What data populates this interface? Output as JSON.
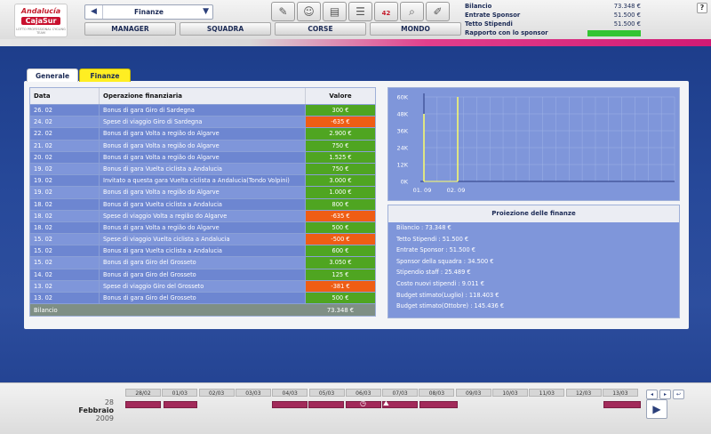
{
  "logo": {
    "top": "Andalucía",
    "brand": "CajaSur",
    "tagline": "LOTTO PROFESSIONAL CYCLING TEAM"
  },
  "header": {
    "selector_value": "Finanze",
    "nav": [
      "MANAGER",
      "SQUADRA",
      "CORSE",
      "MONDO"
    ],
    "icons": [
      "contract-icon",
      "manager-icon",
      "money-icon",
      "notebook-icon",
      "calendar-icon",
      "search-icon",
      "edit-icon"
    ],
    "calendar_badge": "42",
    "summary": [
      {
        "label": "Bilancio",
        "value": "73.348 €"
      },
      {
        "label": "Entrate Sponsor",
        "value": "51.500 €"
      },
      {
        "label": "Tetto Stipendi",
        "value": "51.500 €"
      },
      {
        "label": "Rapporto con lo sponsor",
        "value": ""
      }
    ],
    "sponsor_level": 1.0,
    "sponsor_color": "#33c533",
    "help": "?"
  },
  "tabs": [
    {
      "label": "Generale",
      "active": false
    },
    {
      "label": "Finanze",
      "active": true
    }
  ],
  "table": {
    "headers": [
      "Data",
      "Operazione finanziaria",
      "Valore"
    ],
    "rows": [
      {
        "date": "26. 02",
        "op": "Bonus di gara Giro di Sardegna",
        "value": "300 €",
        "kind": "pos"
      },
      {
        "date": "24. 02",
        "op": "Spese di viaggio Giro di Sardegna",
        "value": "-635 €",
        "kind": "neg"
      },
      {
        "date": "22. 02",
        "op": "Bonus di gara Volta a região do Algarve",
        "value": "2.900 €",
        "kind": "pos"
      },
      {
        "date": "21. 02",
        "op": "Bonus di gara Volta a região do Algarve",
        "value": "750 €",
        "kind": "pos"
      },
      {
        "date": "20. 02",
        "op": "Bonus di gara Volta a região do Algarve",
        "value": "1.525 €",
        "kind": "pos"
      },
      {
        "date": "19. 02",
        "op": "Bonus di gara Vuelta ciclista a Andalucia",
        "value": "750 €",
        "kind": "pos"
      },
      {
        "date": "19. 02",
        "op": "Invitato a questa gara Vuelta ciclista a Andalucia(Tondo Volpini)",
        "value": "3.000 €",
        "kind": "pos"
      },
      {
        "date": "19. 02",
        "op": "Bonus di gara Volta a região do Algarve",
        "value": "1.000 €",
        "kind": "pos"
      },
      {
        "date": "18. 02",
        "op": "Bonus di gara Vuelta ciclista a Andalucia",
        "value": "800 €",
        "kind": "pos"
      },
      {
        "date": "18. 02",
        "op": "Spese di viaggio Volta a região do Algarve",
        "value": "-635 €",
        "kind": "neg"
      },
      {
        "date": "18. 02",
        "op": "Bonus di gara Volta a região do Algarve",
        "value": "500 €",
        "kind": "pos"
      },
      {
        "date": "15. 02",
        "op": "Spese di viaggio Vuelta ciclista a Andalucia",
        "value": "-500 €",
        "kind": "neg"
      },
      {
        "date": "15. 02",
        "op": "Bonus di gara Vuelta ciclista a Andalucia",
        "value": "600 €",
        "kind": "pos"
      },
      {
        "date": "15. 02",
        "op": "Bonus di gara Giro del Grosseto",
        "value": "3.050 €",
        "kind": "pos"
      },
      {
        "date": "14. 02",
        "op": "Bonus di gara Giro del Grosseto",
        "value": "125 €",
        "kind": "pos"
      },
      {
        "date": "13. 02",
        "op": "Spese di viaggio Giro del Grosseto",
        "value": "-381 €",
        "kind": "neg"
      },
      {
        "date": "13. 02",
        "op": "Bonus di gara Giro del Grosseto",
        "value": "500 €",
        "kind": "pos"
      }
    ],
    "footer": {
      "label": "Bilancio",
      "value": "73.348 €"
    }
  },
  "chart_data": {
    "type": "line",
    "y_ticks": [
      "60K",
      "48K",
      "36K",
      "24K",
      "12K",
      "0K"
    ],
    "x_ticks": [
      "01. 09",
      "02. 09"
    ],
    "ylim": [
      0,
      60000
    ],
    "series": [
      {
        "values": [
          0,
          0
        ]
      }
    ],
    "markers": [
      48000,
      60000
    ],
    "grid": true,
    "colors": {
      "line": "#ffff66",
      "grid": "#9fb2e6",
      "axis": "#2a3a80",
      "bg": "#7f96da"
    }
  },
  "projection": {
    "title": "Proiezione delle finanze",
    "lines": [
      "Bilancio : 73.348 €",
      "Tetto Stipendi : 51.500 €",
      "Entrate Sponsor : 51.500 €",
      "Sponsor della squadra : 34.500 €",
      "Stipendio staff : 25.489 €",
      "Costo nuovi stipendi : 9.011 €",
      "Budget stimato(Luglio) : 118.403 €",
      "Budget stimato(Ottobre) : 145.436 €"
    ]
  },
  "timeline": {
    "day": "28",
    "month": "Febbraio",
    "year": "2009",
    "days": [
      "28/02",
      "01/03",
      "02/03",
      "03/03",
      "04/03",
      "05/03",
      "06/03",
      "07/03",
      "08/03",
      "09/03",
      "10/03",
      "11/03",
      "12/03",
      "13/03"
    ],
    "controls": [
      "◂",
      "▸",
      "↩"
    ],
    "play": "▶"
  }
}
